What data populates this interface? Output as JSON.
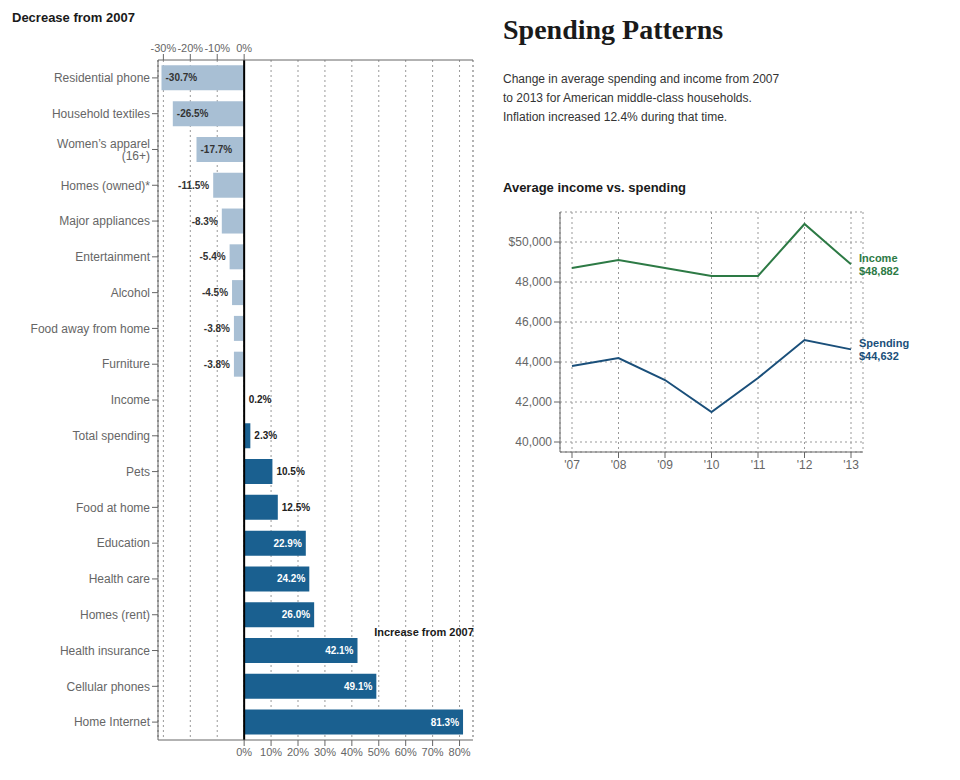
{
  "chart_data": [
    {
      "type": "bar",
      "orientation": "horizontal",
      "title": "Spending Patterns",
      "subtitle": "Change in average spending and income from 2007\nto 2013 for American middle-class households.\nInflation increased 12.4% during that time.",
      "annotations": [
        "Decrease from 2007",
        "Increase from 2007"
      ],
      "categories": [
        "Residential phone",
        "Household textiles",
        "Women’s apparel (16+)",
        "Homes (owned)*",
        "Major appliances",
        "Entertainment",
        "Alcohol",
        "Food away from home",
        "Furniture",
        "Income",
        "Total spending",
        "Pets",
        "Food at home",
        "Education",
        "Health care",
        "Homes (rent)",
        "Health insurance",
        "Cellular phones",
        "Home Internet"
      ],
      "values": [
        -30.7,
        -26.5,
        -17.7,
        -11.5,
        -8.3,
        -5.4,
        -4.5,
        -3.8,
        -3.8,
        0.2,
        2.3,
        10.5,
        12.5,
        22.9,
        24.2,
        26.0,
        42.1,
        49.1,
        81.3
      ],
      "value_labels": [
        "-30.7%",
        "-26.5%",
        "-17.7%",
        "-11.5%",
        "-8.3%",
        "-5.4%",
        "-4.5%",
        "-3.8%",
        "-3.8%",
        "0.2%",
        "2.3%",
        "10.5%",
        "12.5%",
        "22.9%",
        "24.2%",
        "26.0%",
        "42.1%",
        "49.1%",
        "81.3%"
      ],
      "colors": [
        "#a8bfd4",
        "#a8bfd4",
        "#a8bfd4",
        "#a8bfd4",
        "#a8bfd4",
        "#a8bfd4",
        "#a8bfd4",
        "#a8bfd4",
        "#a8bfd4",
        "#c8d4de",
        "#1a6090",
        "#1a6090",
        "#1a6090",
        "#1a6090",
        "#1a6090",
        "#1a6090",
        "#1a6090",
        "#1a6090",
        "#1a6090"
      ],
      "xlim": [
        -32,
        85
      ],
      "xticks": [
        {
          "value": -30,
          "label": "-30%"
        },
        {
          "value": -20,
          "label": "-20%"
        },
        {
          "value": -10,
          "label": "-10%"
        },
        {
          "value": 0,
          "label": "0%"
        },
        {
          "value": 10,
          "label": "10%"
        },
        {
          "value": 20,
          "label": "20%"
        },
        {
          "value": 30,
          "label": "30%"
        },
        {
          "value": 40,
          "label": "40%"
        },
        {
          "value": 50,
          "label": "50%"
        },
        {
          "value": 60,
          "label": "60%"
        },
        {
          "value": 70,
          "label": "70%"
        },
        {
          "value": 80,
          "label": "80%"
        }
      ],
      "grid": true,
      "data_labels": true
    },
    {
      "type": "line",
      "title": "Average income vs. spending",
      "categories": [
        "'07",
        "'08",
        "'09",
        "'10",
        "'11",
        "'12",
        "'13"
      ],
      "series": [
        {
          "name": "Income\n$48,882",
          "color": "#2d7a45",
          "values": [
            48700,
            49100,
            48700,
            48300,
            48300,
            50900,
            48882
          ]
        },
        {
          "name": "Spending\n$44,632",
          "color": "#1a4f7a",
          "values": [
            43800,
            44200,
            43100,
            41500,
            43200,
            45100,
            44632
          ]
        }
      ],
      "ylim": [
        39500,
        51500
      ],
      "yticks": [
        {
          "value": 40000,
          "label": "40,000"
        },
        {
          "value": 42000,
          "label": "42,000"
        },
        {
          "value": 44000,
          "label": "44,000"
        },
        {
          "value": 46000,
          "label": "46,000"
        },
        {
          "value": 48000,
          "label": "48,000"
        },
        {
          "value": 50000,
          "label": "$50,000"
        }
      ],
      "grid": true
    }
  ]
}
